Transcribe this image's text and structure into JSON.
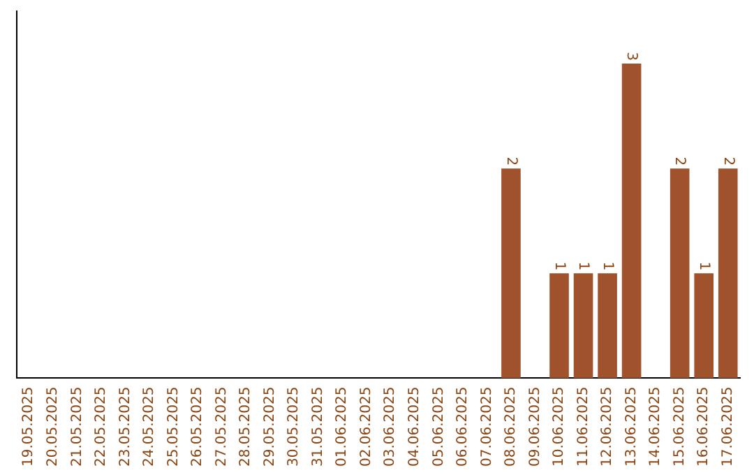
{
  "chart_data": {
    "type": "bar",
    "categories": [
      "19.05.2025",
      "20.05.2025",
      "21.05.2025",
      "22.05.2025",
      "23.05.2025",
      "24.05.2025",
      "25.05.2025",
      "26.05.2025",
      "27.05.2025",
      "28.05.2025",
      "29.05.2025",
      "30.05.2025",
      "31.05.2025",
      "01.06.2025",
      "02.06.2025",
      "03.06.2025",
      "04.06.2025",
      "05.06.2025",
      "06.06.2025",
      "07.06.2025",
      "08.06.2025",
      "09.06.2025",
      "10.06.2025",
      "11.06.2025",
      "12.06.2025",
      "13.06.2025",
      "14.06.2025",
      "15.06.2025",
      "16.06.2025",
      "17.06.2025"
    ],
    "values": [
      null,
      null,
      null,
      null,
      null,
      null,
      null,
      null,
      null,
      null,
      null,
      null,
      null,
      null,
      null,
      null,
      null,
      null,
      null,
      null,
      2,
      null,
      1,
      1,
      1,
      3,
      null,
      2,
      1,
      2
    ],
    "data_labels": true,
    "color": "#a0522d",
    "tick_labels": "x",
    "grid": false,
    "legend": false
  }
}
